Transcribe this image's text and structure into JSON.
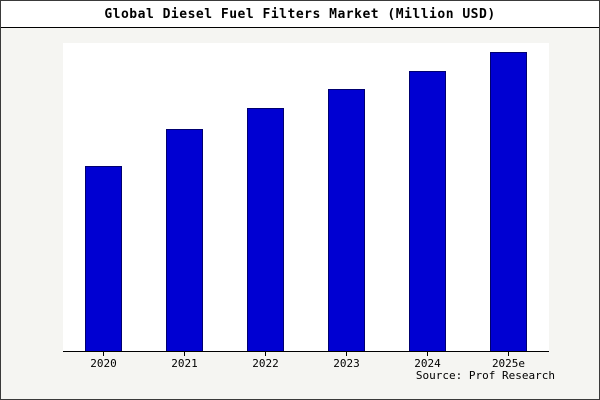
{
  "page": {
    "source": "Source: Prof Research"
  },
  "chart_data": {
    "type": "bar",
    "title": "Global Diesel Fuel Filters Market (Million USD)",
    "categories": [
      "2020",
      "2021",
      "2022",
      "2023",
      "2024",
      "2025e"
    ],
    "values": [
      60,
      72,
      79,
      85,
      91,
      97
    ],
    "xlabel": "",
    "ylabel": "",
    "ylim": [
      0,
      100
    ],
    "grid": false,
    "legend": "none",
    "bar_color": "#0000d2",
    "bar_border_color": "#000070",
    "annotations": [
      "Source: Prof Research"
    ]
  }
}
